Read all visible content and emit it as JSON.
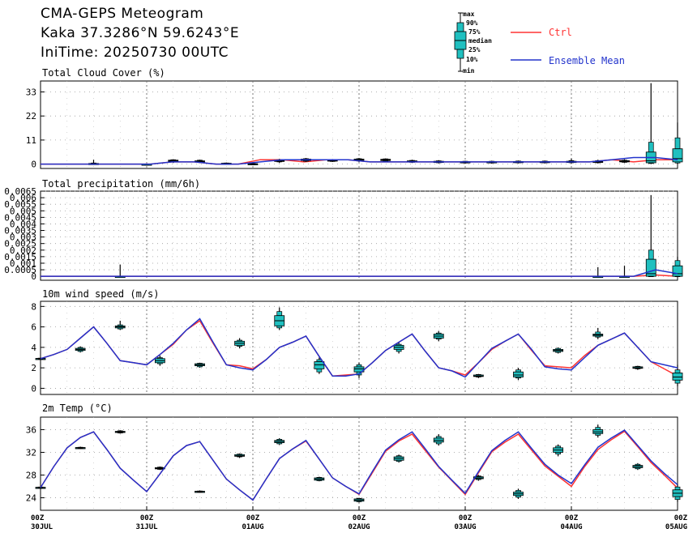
{
  "header": {
    "title": "CMA-GEPS Meteogram",
    "location": "Kaka 37.3286°N 59.6243°E",
    "init_time": "IniTime: 20250730 00UTC"
  },
  "legend": {
    "box_labels": [
      "max",
      "90%",
      "75%",
      "median",
      "25%",
      "10%",
      "min"
    ],
    "ctrl_label": "Ctrl",
    "mean_label": "Ensemble Mean",
    "ctrl_color": "#ff3333",
    "mean_color": "#2233cc",
    "box_color": "#20c0c0"
  },
  "x_axis": {
    "ticks": [
      {
        "hour": "00Z",
        "date": "30JUL"
      },
      {
        "hour": "00Z",
        "date": "31JUL"
      },
      {
        "hour": "00Z",
        "date": "01AUG"
      },
      {
        "hour": "00Z",
        "date": "02AUG"
      },
      {
        "hour": "00Z",
        "date": "03AUG"
      },
      {
        "hour": "00Z",
        "date": "04AUG"
      },
      {
        "hour": "00Z",
        "date": "05AUG"
      }
    ]
  },
  "chart_data": [
    {
      "type": "box",
      "title": "Total Cloud Cover (%)",
      "x_unit": "forecast hour",
      "xlim": [
        0,
        144
      ],
      "ylim": [
        -2,
        38
      ],
      "yticks": [
        "0",
        "11",
        "22",
        "33"
      ],
      "ytick_values": [
        0,
        11,
        22,
        33
      ],
      "ctrl": [
        0,
        0,
        0,
        0,
        0,
        0,
        1,
        1,
        0,
        0,
        2,
        2,
        1,
        2,
        2,
        1,
        1,
        1,
        1,
        1,
        1,
        1,
        1,
        1,
        1,
        1,
        2,
        1,
        2,
        2
      ],
      "mean": [
        0,
        0,
        0,
        0,
        0,
        0,
        1,
        1,
        0,
        0,
        1,
        2,
        2,
        2,
        2,
        1,
        1,
        1,
        1,
        1,
        1,
        1,
        1,
        1,
        1,
        1,
        2,
        3,
        3,
        2
      ],
      "boxes": [
        {
          "x": 12,
          "min": 0,
          "p10": 0,
          "p25": 0,
          "median": 0,
          "p75": 0.3,
          "p90": 0.5,
          "max": 2
        },
        {
          "x": 24,
          "min": 0,
          "p10": 0,
          "p25": 0,
          "median": 0,
          "p75": 0,
          "p90": 0,
          "max": 0
        },
        {
          "x": 30,
          "min": 0.5,
          "p10": 1,
          "p25": 1.2,
          "median": 1.5,
          "p75": 1.8,
          "p90": 2,
          "max": 2.2
        },
        {
          "x": 36,
          "min": 0.5,
          "p10": 0.8,
          "p25": 1,
          "median": 1.2,
          "p75": 1.5,
          "p90": 1.8,
          "max": 2
        },
        {
          "x": 42,
          "min": 0,
          "p10": 0,
          "p25": 0.1,
          "median": 0.2,
          "p75": 0.4,
          "p90": 0.5,
          "max": 0.7
        },
        {
          "x": 48,
          "min": 0,
          "p10": 0,
          "p25": 0,
          "median": 0.1,
          "p75": 0.2,
          "p90": 0.3,
          "max": 0.5
        },
        {
          "x": 54,
          "min": 0.5,
          "p10": 1,
          "p25": 1.2,
          "median": 1.5,
          "p75": 1.8,
          "p90": 2,
          "max": 2.4
        },
        {
          "x": 60,
          "min": 1,
          "p10": 1.3,
          "p25": 1.6,
          "median": 2,
          "p75": 2.3,
          "p90": 2.5,
          "max": 2.8
        },
        {
          "x": 66,
          "min": 1,
          "p10": 1.2,
          "p25": 1.4,
          "median": 1.6,
          "p75": 1.9,
          "p90": 2.1,
          "max": 2.3
        },
        {
          "x": 72,
          "min": 1,
          "p10": 1.4,
          "p25": 1.7,
          "median": 2,
          "p75": 2.3,
          "p90": 2.5,
          "max": 2.8
        },
        {
          "x": 78,
          "min": 1,
          "p10": 1.3,
          "p25": 1.6,
          "median": 1.9,
          "p75": 2.2,
          "p90": 2.4,
          "max": 2.6
        },
        {
          "x": 84,
          "min": 0.5,
          "p10": 0.8,
          "p25": 1,
          "median": 1.2,
          "p75": 1.5,
          "p90": 1.7,
          "max": 2
        },
        {
          "x": 90,
          "min": 0.3,
          "p10": 0.6,
          "p25": 0.8,
          "median": 1,
          "p75": 1.3,
          "p90": 1.5,
          "max": 1.8
        },
        {
          "x": 96,
          "min": 0.2,
          "p10": 0.5,
          "p25": 0.7,
          "median": 0.9,
          "p75": 1.1,
          "p90": 1.3,
          "max": 1.5
        },
        {
          "x": 102,
          "min": 0.2,
          "p10": 0.5,
          "p25": 0.7,
          "median": 0.9,
          "p75": 1.1,
          "p90": 1.3,
          "max": 1.5
        },
        {
          "x": 108,
          "min": 0.3,
          "p10": 0.6,
          "p25": 0.8,
          "median": 1,
          "p75": 1.2,
          "p90": 1.4,
          "max": 1.6
        },
        {
          "x": 114,
          "min": 0.3,
          "p10": 0.6,
          "p25": 0.8,
          "median": 1,
          "p75": 1.2,
          "p90": 1.4,
          "max": 1.6
        },
        {
          "x": 120,
          "min": 0.3,
          "p10": 0.6,
          "p25": 0.8,
          "median": 1,
          "p75": 1.3,
          "p90": 1.6,
          "max": 2.5
        },
        {
          "x": 126,
          "min": 0.3,
          "p10": 0.6,
          "p25": 0.8,
          "median": 1,
          "p75": 1.3,
          "p90": 1.6,
          "max": 2
        },
        {
          "x": 132,
          "min": 0.5,
          "p10": 0.8,
          "p25": 1,
          "median": 1.3,
          "p75": 1.6,
          "p90": 1.8,
          "max": 2.2
        },
        {
          "x": 138,
          "min": 0,
          "p10": 0.3,
          "p25": 0.6,
          "median": 1.5,
          "p75": 5.5,
          "p90": 10,
          "max": 37
        },
        {
          "x": 144,
          "min": 0,
          "p10": 0.5,
          "p25": 1,
          "median": 2.5,
          "p75": 7,
          "p90": 12,
          "max": 19
        }
      ]
    },
    {
      "type": "box",
      "title": "Total precipitation (mm/6h)",
      "x_unit": "forecast hour",
      "xlim": [
        0,
        144
      ],
      "ylim": [
        -0.0003,
        0.0065
      ],
      "yticks": [
        "0",
        "0.0005",
        "0.001",
        "0.0015",
        "0.002",
        "0.0025",
        "0.003",
        "0.0035",
        "0.004",
        "0.0045",
        "0.005",
        "0.0055",
        "0.006",
        "0.0065"
      ],
      "ytick_values": [
        0,
        0.0005,
        0.001,
        0.0015,
        0.002,
        0.0025,
        0.003,
        0.0035,
        0.004,
        0.0045,
        0.005,
        0.0055,
        0.006,
        0.0065
      ],
      "ctrl": [
        0,
        0,
        0,
        0,
        0,
        0,
        0,
        0,
        0,
        0,
        0,
        0,
        0,
        0,
        0,
        0,
        0,
        0,
        0,
        0,
        0,
        0,
        0,
        0,
        0,
        0,
        0,
        0,
        0.0001,
        0
      ],
      "mean": [
        0,
        0,
        0,
        0,
        0,
        0,
        0,
        0,
        0,
        0,
        0,
        0,
        0,
        0,
        0,
        0,
        0,
        0,
        0,
        0,
        0,
        0,
        0,
        0,
        0,
        0,
        0,
        0,
        0.0005,
        0.0002
      ],
      "boxes": [
        {
          "x": 18,
          "min": 0,
          "p10": 0,
          "p25": 0,
          "median": 0,
          "p75": 0,
          "p90": 0,
          "max": 0.0009
        },
        {
          "x": 126,
          "min": 0,
          "p10": 0,
          "p25": 0,
          "median": 0,
          "p75": 0,
          "p90": 0,
          "max": 0.0007
        },
        {
          "x": 132,
          "min": 0,
          "p10": 0,
          "p25": 0,
          "median": 0,
          "p75": 0,
          "p90": 0,
          "max": 0.0008
        },
        {
          "x": 138,
          "min": 0,
          "p10": 0,
          "p25": 0,
          "median": 0.0002,
          "p75": 0.0013,
          "p90": 0.002,
          "max": 0.0062
        },
        {
          "x": 144,
          "min": 0,
          "p10": 0,
          "p25": 0,
          "median": 0.0002,
          "p75": 0.0008,
          "p90": 0.0012,
          "max": 0.0015
        }
      ]
    },
    {
      "type": "box",
      "title": "10m wind speed (m/s)",
      "x_unit": "forecast hour",
      "xlim": [
        0,
        144
      ],
      "ylim": [
        -0.6,
        8.5
      ],
      "yticks": [
        "0",
        "2",
        "4",
        "6",
        "8"
      ],
      "ytick_values": [
        0,
        2,
        4,
        6,
        8
      ],
      "ctrl": [
        2.9,
        3.3,
        3.8,
        4.9,
        6.0,
        4.4,
        2.7,
        2.5,
        2.3,
        3.3,
        4.3,
        5.7,
        6.6,
        4.4,
        2.3,
        2.2,
        1.9,
        2.8,
        4.0,
        4.5,
        5.1,
        3.1,
        1.2,
        1.3,
        1.4,
        2.5,
        3.7,
        4.5,
        5.3,
        3.6,
        2.0,
        1.7,
        1.3,
        2.5,
        3.8,
        4.6,
        5.3,
        3.7,
        2.2,
        2.1,
        2.0,
        3.2,
        4.2,
        4.8,
        5.4,
        4.0,
        2.6,
        1.9,
        1.2
      ],
      "mean": [
        2.9,
        3.3,
        3.8,
        4.9,
        6.0,
        4.4,
        2.7,
        2.5,
        2.3,
        3.3,
        4.4,
        5.7,
        6.8,
        4.5,
        2.3,
        2.0,
        1.8,
        2.8,
        4.0,
        4.5,
        5.1,
        3.1,
        1.2,
        1.2,
        1.4,
        2.5,
        3.7,
        4.5,
        5.3,
        3.6,
        2.0,
        1.7,
        1.1,
        2.5,
        3.9,
        4.6,
        5.3,
        3.8,
        2.1,
        1.9,
        1.8,
        3.0,
        4.2,
        4.8,
        5.4,
        4.0,
        2.6,
        2.3,
        2.0
      ],
      "boxes": [
        {
          "x": 0,
          "min": 2.8,
          "p10": 2.85,
          "p25": 2.88,
          "median": 2.9,
          "p75": 2.92,
          "p90": 2.95,
          "max": 3.0
        },
        {
          "x": 9,
          "min": 3.5,
          "p10": 3.6,
          "p25": 3.7,
          "median": 3.8,
          "p75": 3.9,
          "p90": 4.0,
          "max": 4.1
        },
        {
          "x": 18,
          "min": 5.7,
          "p10": 5.8,
          "p25": 5.9,
          "median": 6.0,
          "p75": 6.1,
          "p90": 6.2,
          "max": 6.6
        },
        {
          "x": 27,
          "min": 2.2,
          "p10": 2.4,
          "p25": 2.5,
          "median": 2.7,
          "p75": 2.9,
          "p90": 3.0,
          "max": 3.2
        },
        {
          "x": 36,
          "min": 2.0,
          "p10": 2.1,
          "p25": 2.2,
          "median": 2.3,
          "p75": 2.4,
          "p90": 2.45,
          "max": 2.5
        },
        {
          "x": 45,
          "min": 3.9,
          "p10": 4.1,
          "p25": 4.2,
          "median": 4.4,
          "p75": 4.6,
          "p90": 4.7,
          "max": 4.9
        },
        {
          "x": 54,
          "min": 5.7,
          "p10": 5.9,
          "p25": 6.1,
          "median": 6.6,
          "p75": 7.1,
          "p90": 7.5,
          "max": 7.9
        },
        {
          "x": 63,
          "min": 1.4,
          "p10": 1.6,
          "p25": 1.9,
          "median": 2.3,
          "p75": 2.6,
          "p90": 2.8,
          "max": 3.0
        },
        {
          "x": 72,
          "min": 1.0,
          "p10": 1.3,
          "p25": 1.6,
          "median": 1.9,
          "p75": 2.1,
          "p90": 2.3,
          "max": 2.5
        },
        {
          "x": 81,
          "min": 3.4,
          "p10": 3.6,
          "p25": 3.8,
          "median": 4.0,
          "p75": 4.2,
          "p90": 4.3,
          "max": 4.5
        },
        {
          "x": 90,
          "min": 4.6,
          "p10": 4.8,
          "p25": 4.9,
          "median": 5.1,
          "p75": 5.3,
          "p90": 5.4,
          "max": 5.6
        },
        {
          "x": 99,
          "min": 1.0,
          "p10": 1.1,
          "p25": 1.15,
          "median": 1.2,
          "p75": 1.3,
          "p90": 1.35,
          "max": 1.4
        },
        {
          "x": 108,
          "min": 0.8,
          "p10": 1.0,
          "p25": 1.1,
          "median": 1.3,
          "p75": 1.6,
          "p90": 1.8,
          "max": 2.0
        },
        {
          "x": 117,
          "min": 3.4,
          "p10": 3.5,
          "p25": 3.6,
          "median": 3.7,
          "p75": 3.8,
          "p90": 3.9,
          "max": 4.0
        },
        {
          "x": 126,
          "min": 4.8,
          "p10": 5.0,
          "p25": 5.1,
          "median": 5.2,
          "p75": 5.3,
          "p90": 5.5,
          "max": 5.9
        },
        {
          "x": 135,
          "min": 1.8,
          "p10": 1.9,
          "p25": 1.95,
          "median": 2.0,
          "p75": 2.1,
          "p90": 2.15,
          "max": 2.2
        },
        {
          "x": 144,
          "min": 0.2,
          "p10": 0.5,
          "p25": 0.8,
          "median": 1.1,
          "p75": 1.5,
          "p90": 1.8,
          "max": 2.3
        }
      ]
    },
    {
      "type": "box",
      "title": "2m Temp (°C)",
      "x_unit": "forecast hour",
      "xlim": [
        0,
        144
      ],
      "ylim": [
        21.8,
        38.2
      ],
      "yticks": [
        "24",
        "28",
        "32",
        "36"
      ],
      "ytick_values": [
        24,
        28,
        32,
        36
      ],
      "ctrl": [
        25.8,
        29.5,
        32.8,
        34.6,
        35.6,
        32.5,
        29.2,
        27.1,
        25.1,
        28.2,
        31.4,
        33.2,
        33.9,
        30.6,
        27.3,
        25.4,
        23.6,
        27.3,
        30.9,
        32.6,
        34.0,
        30.8,
        27.5,
        26.0,
        24.6,
        28.4,
        32.2,
        34.0,
        35.2,
        32.3,
        29.4,
        27.0,
        24.6,
        28.4,
        32.1,
        33.8,
        35.2,
        32.4,
        29.6,
        27.8,
        26.0,
        29.5,
        32.5,
        34.2,
        35.7,
        33.0,
        30.2,
        28.0,
        25.7
      ],
      "mean": [
        25.8,
        29.5,
        32.8,
        34.6,
        35.6,
        32.5,
        29.2,
        27.1,
        25.1,
        28.2,
        31.4,
        33.2,
        33.9,
        30.6,
        27.3,
        25.4,
        23.6,
        27.3,
        30.9,
        32.6,
        34.1,
        30.8,
        27.5,
        26.0,
        24.7,
        28.6,
        32.4,
        34.2,
        35.6,
        32.6,
        29.5,
        27.1,
        24.8,
        28.6,
        32.3,
        34.1,
        35.6,
        32.7,
        29.9,
        28.0,
        26.5,
        29.8,
        32.9,
        34.5,
        35.9,
        33.2,
        30.5,
        28.3,
        26.3
      ],
      "boxes": [
        {
          "x": 0,
          "min": 25.7,
          "p10": 25.75,
          "p25": 25.8,
          "median": 25.8,
          "p75": 25.85,
          "p90": 25.9,
          "max": 25.9
        },
        {
          "x": 9,
          "min": 32.6,
          "p10": 32.7,
          "p25": 32.75,
          "median": 32.8,
          "p75": 32.85,
          "p90": 32.9,
          "max": 33.0
        },
        {
          "x": 18,
          "min": 35.3,
          "p10": 35.4,
          "p25": 35.5,
          "median": 35.6,
          "p75": 35.7,
          "p90": 35.8,
          "max": 35.9
        },
        {
          "x": 27,
          "min": 28.9,
          "p10": 29.0,
          "p25": 29.1,
          "median": 29.2,
          "p75": 29.3,
          "p90": 29.4,
          "max": 29.5
        },
        {
          "x": 36,
          "min": 24.9,
          "p10": 25.0,
          "p25": 25.05,
          "median": 25.1,
          "p75": 25.15,
          "p90": 25.2,
          "max": 25.3
        },
        {
          "x": 45,
          "min": 31.0,
          "p10": 31.2,
          "p25": 31.3,
          "median": 31.4,
          "p75": 31.6,
          "p90": 31.7,
          "max": 31.8
        },
        {
          "x": 54,
          "min": 33.3,
          "p10": 33.5,
          "p25": 33.7,
          "median": 33.9,
          "p75": 34.1,
          "p90": 34.3,
          "max": 34.5
        },
        {
          "x": 63,
          "min": 26.9,
          "p10": 27.0,
          "p25": 27.1,
          "median": 27.3,
          "p75": 27.5,
          "p90": 27.6,
          "max": 27.7
        },
        {
          "x": 72,
          "min": 23.2,
          "p10": 23.3,
          "p25": 23.4,
          "median": 23.6,
          "p75": 23.8,
          "p90": 23.9,
          "max": 24.0
        },
        {
          "x": 81,
          "min": 30.2,
          "p10": 30.4,
          "p25": 30.6,
          "median": 30.9,
          "p75": 31.2,
          "p90": 31.4,
          "max": 31.6
        },
        {
          "x": 90,
          "min": 33.2,
          "p10": 33.5,
          "p25": 33.8,
          "median": 34.1,
          "p75": 34.5,
          "p90": 34.8,
          "max": 35.2
        },
        {
          "x": 99,
          "min": 27.0,
          "p10": 27.2,
          "p25": 27.35,
          "median": 27.5,
          "p75": 27.7,
          "p90": 27.85,
          "max": 28.0
        },
        {
          "x": 108,
          "min": 23.8,
          "p10": 24.1,
          "p25": 24.4,
          "median": 24.7,
          "p75": 25.0,
          "p90": 25.3,
          "max": 25.6
        },
        {
          "x": 117,
          "min": 31.3,
          "p10": 31.7,
          "p25": 32.0,
          "median": 32.4,
          "p75": 32.8,
          "p90": 33.1,
          "max": 33.4
        },
        {
          "x": 126,
          "min": 34.6,
          "p10": 35.0,
          "p25": 35.3,
          "median": 35.6,
          "p75": 36.0,
          "p90": 36.4,
          "max": 36.9
        },
        {
          "x": 135,
          "min": 28.9,
          "p10": 29.1,
          "p25": 29.3,
          "median": 29.5,
          "p75": 29.7,
          "p90": 29.9,
          "max": 30.1
        },
        {
          "x": 144,
          "min": 23.3,
          "p10": 23.7,
          "p25": 24.2,
          "median": 24.8,
          "p75": 25.4,
          "p90": 25.9,
          "max": 26.4
        }
      ]
    }
  ]
}
